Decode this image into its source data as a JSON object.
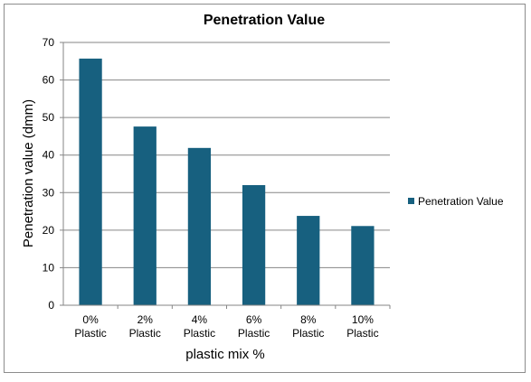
{
  "chart_data": {
    "type": "bar",
    "title": "Penetration Value",
    "xlabel": "plastic mix %",
    "ylabel": "Penetration value  (dmm)",
    "categories": [
      [
        "0%",
        "Plastic"
      ],
      [
        "2%",
        "Plastic"
      ],
      [
        "4%",
        "Plastic"
      ],
      [
        "6%",
        "Plastic"
      ],
      [
        "8%",
        "Plastic"
      ],
      [
        "10%",
        "Plastic"
      ]
    ],
    "series": [
      {
        "name": "Penetration Value",
        "values": [
          65.7,
          47.6,
          41.9,
          32.0,
          23.8,
          21.1
        ],
        "color": "#17607f"
      }
    ],
    "ylim": [
      0,
      70
    ],
    "yticks": [
      0,
      10,
      20,
      30,
      40,
      50,
      60,
      70
    ],
    "grid": true,
    "legend_position": "right"
  }
}
